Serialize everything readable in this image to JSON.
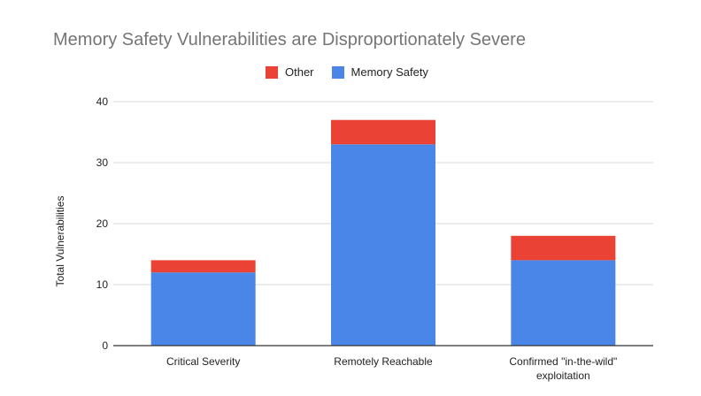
{
  "colors": {
    "other": "#ea4335",
    "memory_safety": "#4a86e8",
    "grid": "#d9d9d9",
    "axis": "#333333",
    "title": "#757575"
  },
  "chart_data": {
    "type": "bar",
    "stacked": true,
    "title": "Memory Safety Vulnerabilities are Disproportionately Severe",
    "xlabel": "",
    "ylabel": "Total Vulnerabilities",
    "ylim": [
      0,
      40
    ],
    "yticks": [
      0,
      10,
      20,
      30,
      40
    ],
    "grid": true,
    "legend_position": "top",
    "categories": [
      [
        "Critical Severity"
      ],
      [
        "Remotely Reachable"
      ],
      [
        "Confirmed \"in-the-wild\"",
        "exploitation"
      ]
    ],
    "series": [
      {
        "name": "Memory Safety",
        "color": "#4a86e8",
        "values": [
          12,
          33,
          14
        ]
      },
      {
        "name": "Other",
        "color": "#ea4335",
        "values": [
          2,
          4,
          4
        ]
      }
    ],
    "legend": [
      {
        "name": "Other",
        "color": "#ea4335"
      },
      {
        "name": "Memory Safety",
        "color": "#4a86e8"
      }
    ]
  }
}
